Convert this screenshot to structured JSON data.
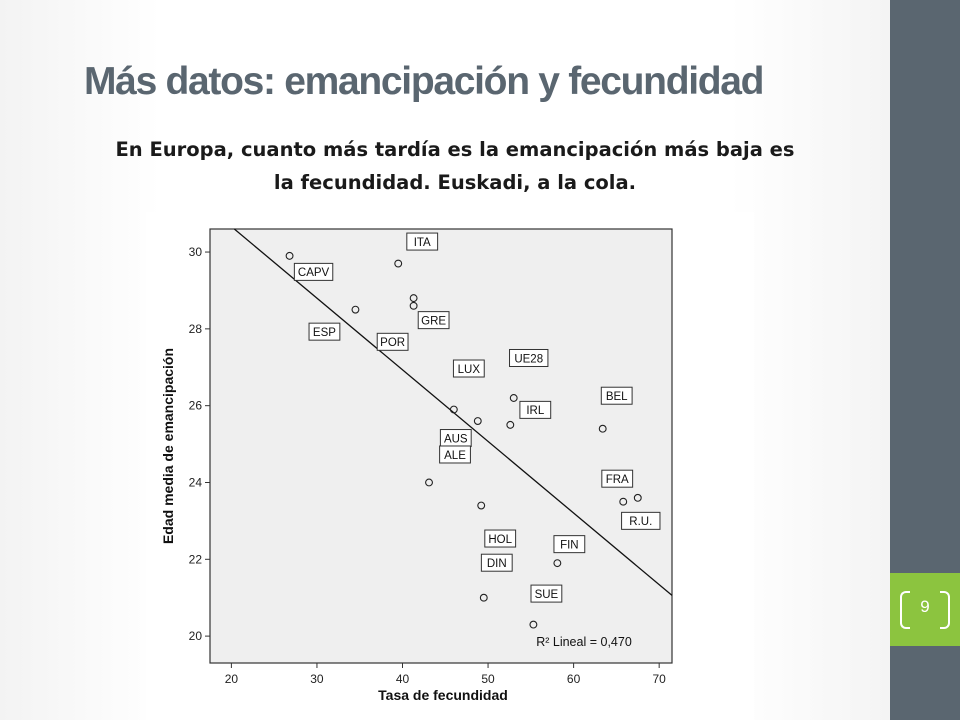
{
  "slide": {
    "title": "Más datos: emancipación y fecundidad",
    "subtitle_line1": "En Europa, cuanto más tardía es la emancipación más baja es",
    "subtitle_line2": "la fecundidad. Euskadi, a la cola.",
    "page_number": "9",
    "colors": {
      "title": "#5a6670",
      "side_bar": "#5a6670",
      "page_badge": "#8cc43f",
      "plot_bg": "#efefef"
    }
  },
  "chart_data": {
    "type": "scatter",
    "xlabel": "Tasa de fecundidad",
    "ylabel": "Edad media de emancipación",
    "xlim": [
      17.5,
      71.5
    ],
    "ylim": [
      19.3,
      30.6
    ],
    "xticks": [
      20,
      30,
      40,
      50,
      60,
      70
    ],
    "yticks": [
      20,
      22,
      24,
      26,
      28,
      30
    ],
    "grid": false,
    "points": [
      {
        "label": "CAPV",
        "x": 26.8,
        "y": 29.9
      },
      {
        "label": "ITA",
        "x": 39.5,
        "y": 29.7
      },
      {
        "label": "ESP",
        "x": 34.5,
        "y": 28.5
      },
      {
        "label": "GRE",
        "x": 41.3,
        "y": 28.8
      },
      {
        "label": "POR",
        "x": 41.3,
        "y": 28.6
      },
      {
        "label": "UE28",
        "x": 53.0,
        "y": 26.2
      },
      {
        "label": "LUX",
        "x": 46.0,
        "y": 25.9
      },
      {
        "label": "AUS",
        "x": 48.8,
        "y": 25.6
      },
      {
        "label": "IRL",
        "x": 52.6,
        "y": 25.5
      },
      {
        "label": "BEL",
        "x": 63.4,
        "y": 25.4
      },
      {
        "label": "ALE",
        "x": 43.1,
        "y": 24.0
      },
      {
        "label": "FRA",
        "x": 65.8,
        "y": 23.5
      },
      {
        "label": "R.U.",
        "x": 67.5,
        "y": 23.6
      },
      {
        "label": "HOL",
        "x": 49.2,
        "y": 23.4
      },
      {
        "label": "FIN",
        "x": 58.1,
        "y": 21.9
      },
      {
        "label": "DIN",
        "x": 49.5,
        "y": 21.0
      },
      {
        "label": "SUE",
        "x": 55.3,
        "y": 20.3
      }
    ],
    "fit_line": {
      "type": "linear",
      "x": [
        17.5,
        71.5
      ],
      "y": [
        31.13,
        21.06
      ]
    },
    "annotation": "R² Lineal = 0,470"
  }
}
